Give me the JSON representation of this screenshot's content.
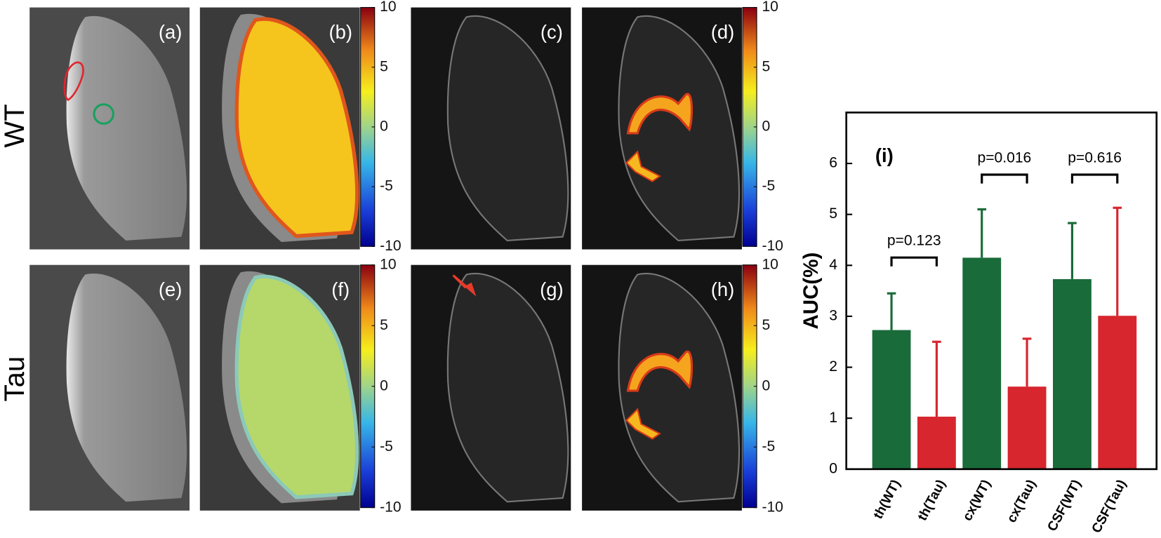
{
  "panels": {
    "labels": [
      "(a)",
      "(b)",
      "(c)",
      "(d)",
      "(e)",
      "(f)",
      "(g)",
      "(h)"
    ],
    "rows": [
      "WT",
      "Tau"
    ]
  },
  "colorbar": {
    "lim": [
      -10,
      10
    ],
    "ticks": [
      10,
      5,
      0,
      -5,
      -10
    ]
  },
  "chart_data": {
    "type": "bar",
    "annotation": "(i)",
    "ylabel": "AUC(%)",
    "categories": [
      "th(WT)",
      "th(Tau)",
      "cx(WT)",
      "cx(Tau)",
      "CSF(WT)",
      "CSF(Tau)"
    ],
    "values": [
      2.73,
      1.03,
      4.15,
      1.62,
      3.73,
      3.01
    ],
    "errors": [
      0.72,
      1.47,
      0.95,
      0.94,
      1.1,
      2.12
    ],
    "colors": [
      "#1a6b3a",
      "#d7262e",
      "#1a6b3a",
      "#d7262e",
      "#1a6b3a",
      "#d7262e"
    ],
    "ylim": [
      0,
      7
    ],
    "yticks": [
      0,
      1,
      2,
      3,
      4,
      5,
      6
    ],
    "p_values": [
      "p=0.123",
      "p=0.016",
      "p=0.616"
    ]
  }
}
